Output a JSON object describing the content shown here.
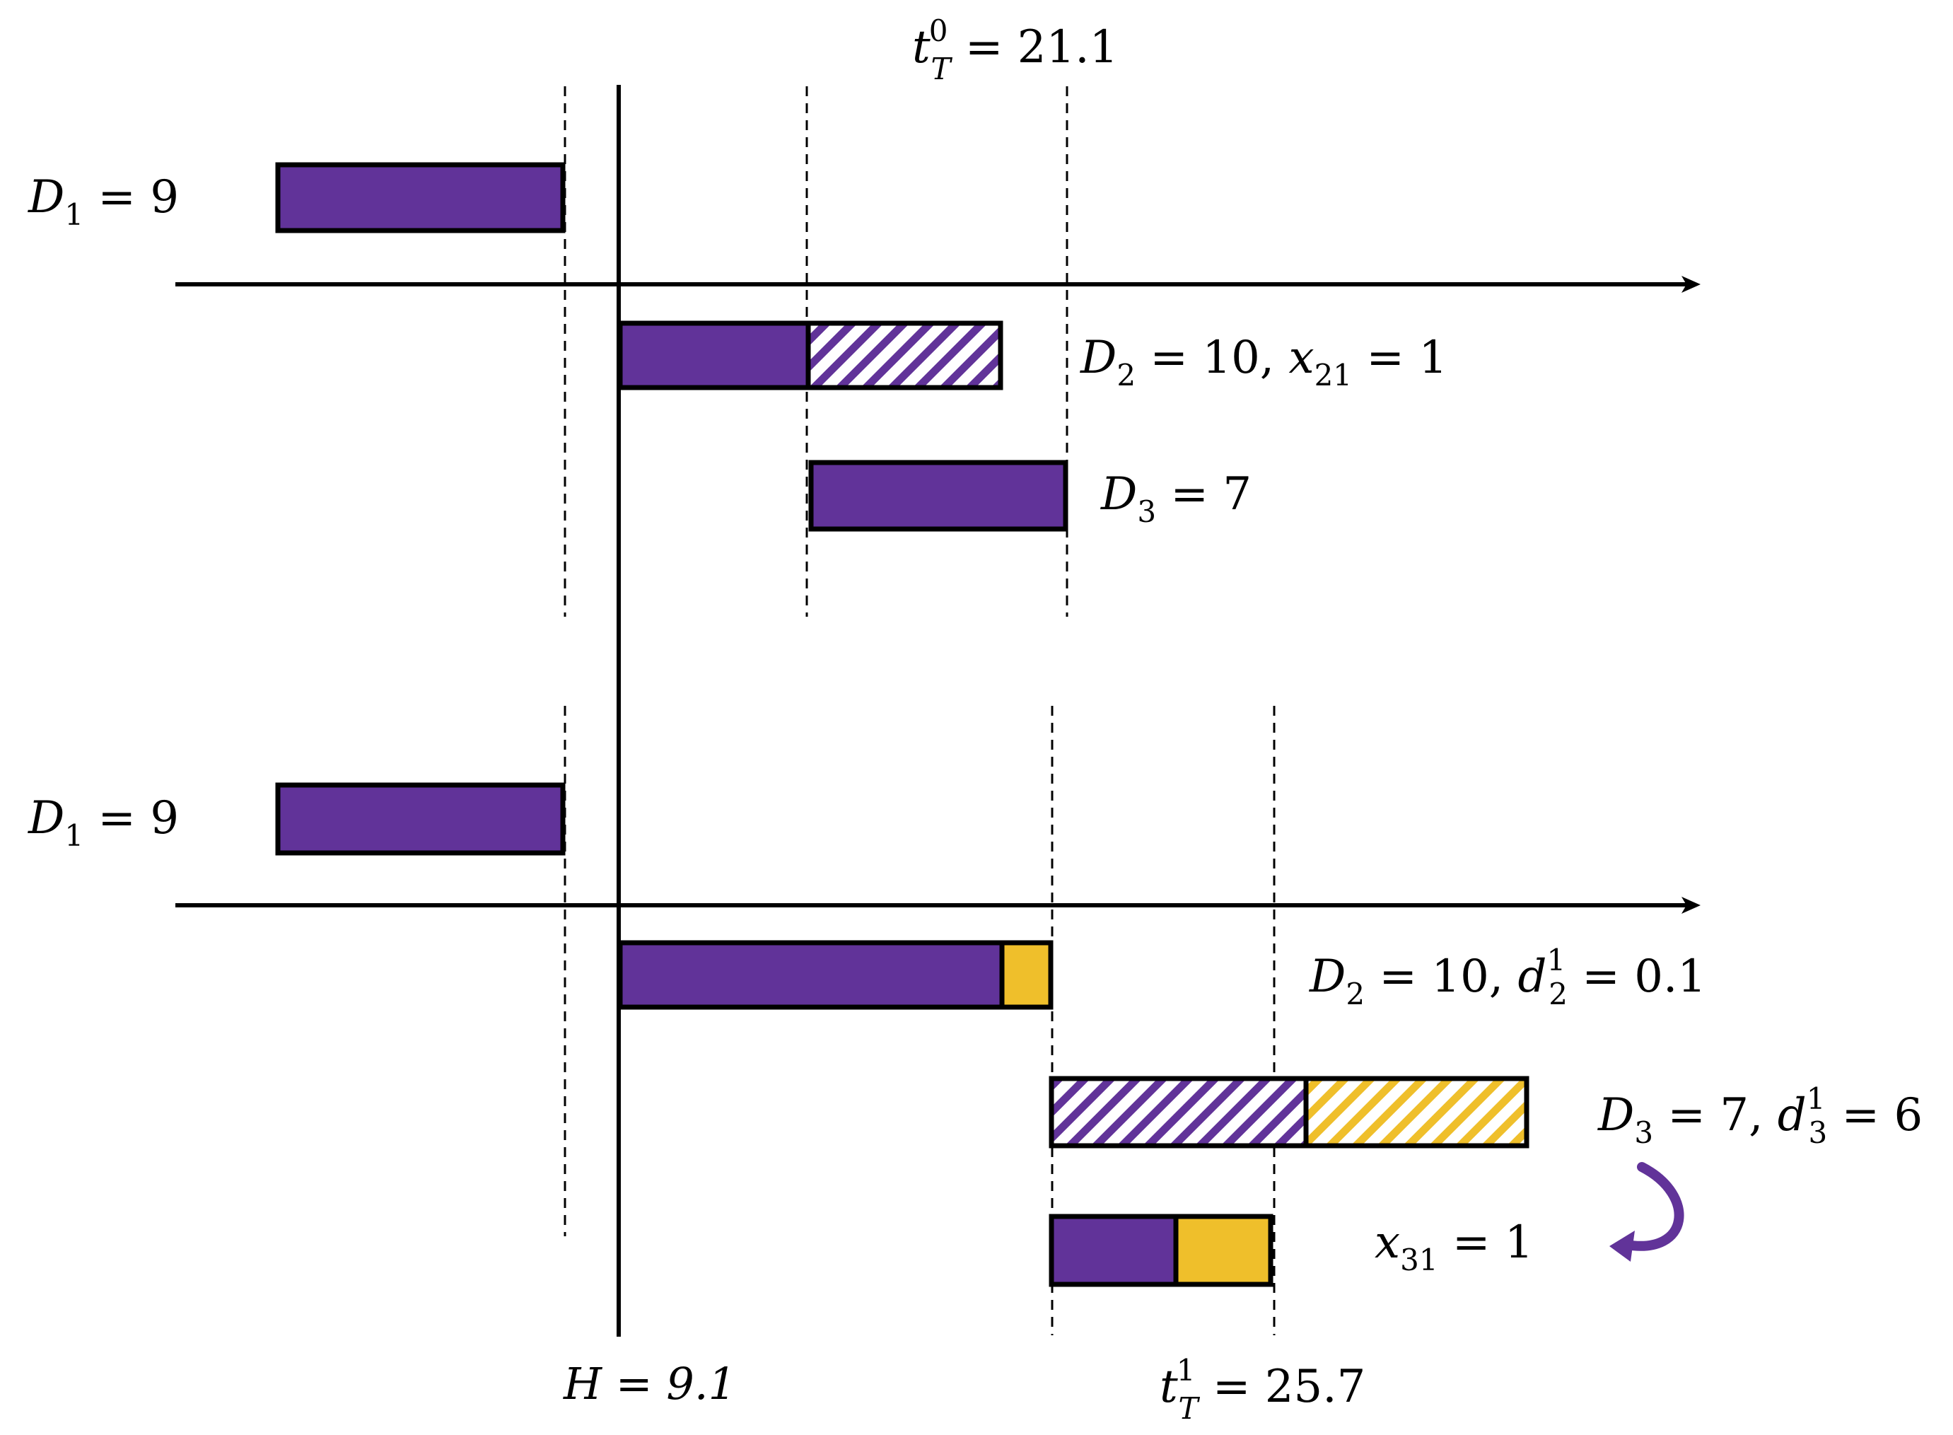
{
  "colors": {
    "purple": "#613399",
    "yellow": "#EFBF2B",
    "black": "#000000",
    "white": "#ffffff"
  },
  "top": {
    "t_label": {
      "base": "t",
      "sup": "0",
      "sub": "T",
      "rest": " = 21.1"
    },
    "d1": {
      "base": "D",
      "sub": "1",
      "rest": " = 9"
    },
    "d2": {
      "base": "D",
      "sub": "2",
      "mid": " = 10, ",
      "x_base": "x",
      "x_sub": "21",
      "rest": " = 1"
    },
    "d3": {
      "base": "D",
      "sub": "3",
      "rest": " = 7"
    }
  },
  "bottom": {
    "d1": {
      "base": "D",
      "sub": "1",
      "rest": " = 9"
    },
    "d2": {
      "base": "D",
      "sub": "2",
      "mid": " = 10, ",
      "d_base": "d",
      "d_sup": "1",
      "d_sub": "2",
      "rest": " = 0.1"
    },
    "d3": {
      "base": "D",
      "sub": "3",
      "mid": " = 7, ",
      "d_base": "d",
      "d_sup": "1",
      "d_sub": "3",
      "rest": " = 6"
    },
    "x31": {
      "base": "x",
      "sub": "31",
      "rest": " = 1"
    },
    "h_label": "H = 9.1",
    "t_label": {
      "base": "t",
      "sup": "1",
      "sub": "T",
      "rest": " = 25.7"
    }
  }
}
